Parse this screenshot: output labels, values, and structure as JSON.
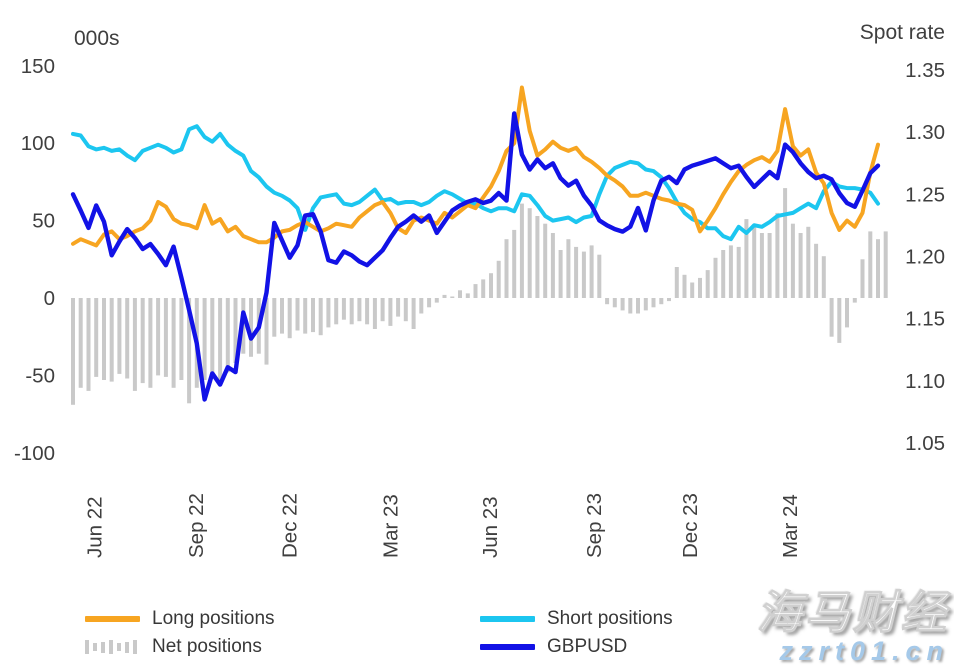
{
  "colors": {
    "long": "#F7A521",
    "short": "#1CC6F0",
    "gbpusd": "#1212E6",
    "net": "#C9C9C9",
    "text": "#3f3f3f"
  },
  "legend": {
    "long_label": "Long positions",
    "net_label": "Net positions",
    "short_label": "Short positions",
    "gbpusd_label": "GBPUSD"
  },
  "watermark": {
    "brand": "海马财经",
    "url": "zzrt01.cn"
  },
  "chart_data": {
    "type": "mixed",
    "title": "",
    "grid": false,
    "left_axis": {
      "title": "000s",
      "ticks": [
        150,
        100,
        50,
        0,
        -50,
        -100
      ],
      "range": [
        -100,
        150
      ]
    },
    "right_axis": {
      "title": "Spot rate",
      "ticks": [
        "1.35",
        "1.30",
        "1.25",
        "1.20",
        "1.15",
        "1.10",
        "1.05"
      ],
      "range": [
        1.05,
        1.35
      ]
    },
    "x_ticks": [
      {
        "label": "Jun 22",
        "pos": 2.8
      },
      {
        "label": "Sep 22",
        "pos": 15.9
      },
      {
        "label": "Dec 22",
        "pos": 28.0
      },
      {
        "label": "Mar 23",
        "pos": 41.0
      },
      {
        "label": "Jun 23",
        "pos": 53.9
      },
      {
        "label": "Sep 23",
        "pos": 67.3
      },
      {
        "label": "Dec 23",
        "pos": 79.7
      },
      {
        "label": "Mar 24",
        "pos": 92.6
      }
    ],
    "series": [
      {
        "name": "Net positions",
        "type": "bar",
        "axis": "left",
        "color_key": "net",
        "values": [
          -69,
          -58,
          -60,
          -51,
          -53,
          -54,
          -49,
          -52,
          -60,
          -55,
          -58,
          -50,
          -51,
          -58,
          -53,
          -68,
          -58,
          -53,
          -49,
          -56,
          -48,
          -42,
          -36,
          -38,
          -36,
          -43,
          -25,
          -23,
          -26,
          -21,
          -23,
          -22,
          -24,
          -19,
          -17,
          -14,
          -17,
          -15,
          -17,
          -20,
          -15,
          -18,
          -12,
          -15,
          -20,
          -10,
          -6,
          -3,
          2,
          1,
          5,
          3,
          9,
          12,
          16,
          24,
          38,
          44,
          61,
          58,
          53,
          48,
          42,
          31,
          38,
          33,
          30,
          34,
          28,
          -4,
          -6,
          -8,
          -10,
          -10,
          -8,
          -6,
          -4,
          -2,
          20,
          15,
          10,
          13,
          18,
          26,
          31,
          34,
          33,
          51,
          46,
          42,
          42,
          55,
          71,
          48,
          42,
          46,
          35,
          27,
          -25,
          -29,
          -19,
          -3,
          25,
          43,
          38,
          43
        ]
      },
      {
        "name": "Short positions",
        "type": "line",
        "axis": "left",
        "color_key": "short",
        "values": [
          106,
          105,
          98,
          96,
          97,
          95,
          96,
          92,
          89,
          95,
          97,
          99,
          97,
          94,
          96,
          109,
          111,
          104,
          101,
          106,
          99,
          95,
          92,
          82,
          78,
          72,
          68,
          66,
          63,
          58,
          44,
          58,
          65,
          66,
          67,
          61,
          60,
          62,
          66,
          70,
          63,
          64,
          61,
          62,
          62,
          60,
          62,
          66,
          69,
          67,
          64,
          61,
          61,
          58,
          56,
          58,
          58,
          56,
          67,
          66,
          60,
          53,
          50,
          51,
          52,
          49,
          52,
          53,
          67,
          79,
          84,
          86,
          88,
          87,
          83,
          82,
          78,
          71,
          62,
          55,
          51,
          49,
          45,
          45,
          40,
          38,
          46,
          42,
          47,
          46,
          49,
          53,
          54,
          55,
          58,
          61,
          58,
          69,
          75,
          72,
          71,
          71,
          70,
          68,
          61
        ]
      },
      {
        "name": "Long positions",
        "type": "line",
        "axis": "left",
        "color_key": "long",
        "values": [
          35,
          38,
          36,
          34,
          41,
          43,
          38,
          40,
          43,
          45,
          50,
          62,
          59,
          51,
          48,
          47,
          45,
          60,
          48,
          51,
          43,
          46,
          40,
          38,
          36,
          36,
          39,
          43,
          44,
          47,
          49,
          46,
          43,
          45,
          48,
          47,
          46,
          52,
          56,
          60,
          62,
          55,
          45,
          42,
          50,
          52,
          50,
          48,
          55,
          52,
          56,
          60,
          58,
          65,
          72,
          82,
          95,
          100,
          136,
          108,
          92,
          96,
          101,
          97,
          95,
          97,
          91,
          88,
          84,
          79,
          76,
          72,
          66,
          66,
          68,
          66,
          64,
          63,
          61,
          60,
          57,
          43,
          50,
          58,
          67,
          75,
          82,
          86,
          89,
          91,
          88,
          95,
          122,
          98,
          92,
          96,
          81,
          74,
          55,
          44,
          50,
          46,
          55,
          81,
          99
        ]
      },
      {
        "name": "GBPUSD",
        "type": "line",
        "axis": "right",
        "color_key": "gbpusd",
        "values": [
          1.25,
          1.237,
          1.223,
          1.241,
          1.228,
          1.201,
          1.212,
          1.222,
          1.215,
          1.206,
          1.21,
          1.202,
          1.193,
          1.208,
          1.183,
          1.157,
          1.13,
          1.085,
          1.106,
          1.097,
          1.111,
          1.107,
          1.155,
          1.134,
          1.143,
          1.171,
          1.227,
          1.213,
          1.199,
          1.209,
          1.233,
          1.234,
          1.22,
          1.197,
          1.195,
          1.204,
          1.201,
          1.196,
          1.193,
          1.199,
          1.205,
          1.215,
          1.224,
          1.228,
          1.233,
          1.228,
          1.233,
          1.219,
          1.228,
          1.237,
          1.241,
          1.244,
          1.246,
          1.243,
          1.245,
          1.251,
          1.245,
          1.315,
          1.282,
          1.27,
          1.278,
          1.271,
          1.275,
          1.263,
          1.257,
          1.261,
          1.249,
          1.241,
          1.229,
          1.225,
          1.222,
          1.22,
          1.224,
          1.239,
          1.221,
          1.245,
          1.261,
          1.264,
          1.259,
          1.27,
          1.273,
          1.275,
          1.277,
          1.279,
          1.275,
          1.271,
          1.273,
          1.264,
          1.256,
          1.262,
          1.268,
          1.263,
          1.29,
          1.284,
          1.275,
          1.268,
          1.263,
          1.265,
          1.262,
          1.251,
          1.243,
          1.24,
          1.253,
          1.267,
          1.273
        ]
      }
    ]
  }
}
